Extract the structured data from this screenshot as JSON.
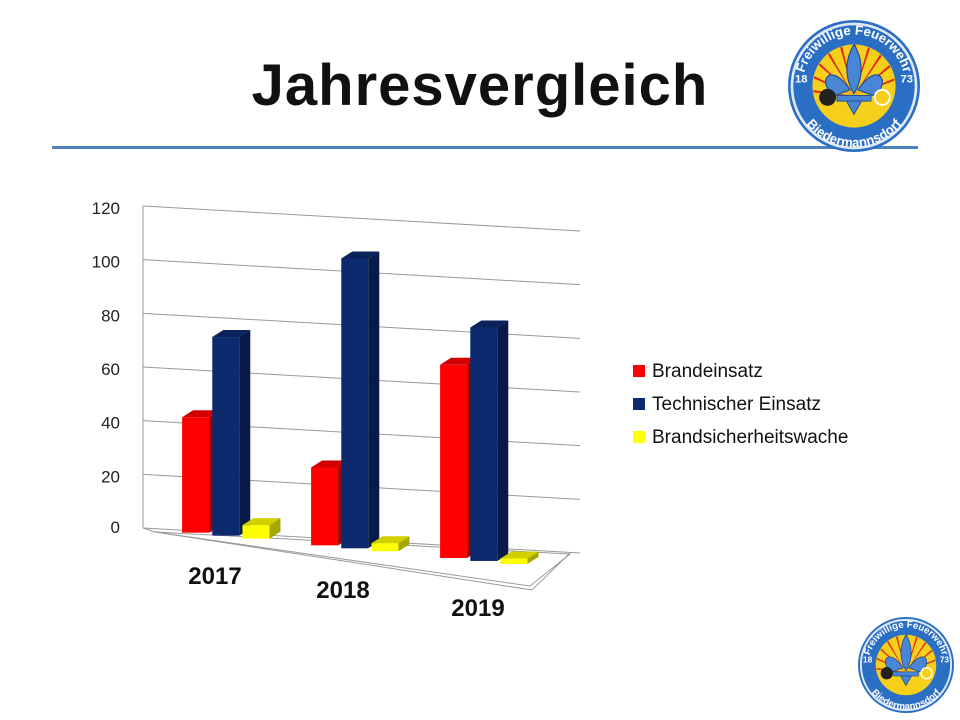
{
  "slide": {
    "title": "Jahresvergleich",
    "logo_text_top": "Freiwillige Feuerwehr",
    "logo_text_bottom": "Biedermannsdorf",
    "logo_year_left": "18",
    "logo_year_right": "73"
  },
  "chart_data": {
    "type": "bar",
    "title": "",
    "xlabel": "",
    "ylabel": "",
    "categories": [
      "2017",
      "2018",
      "2019"
    ],
    "series": [
      {
        "name": "Brandeinsatz",
        "values": [
          43,
          29,
          72
        ],
        "color": "#ff0000"
      },
      {
        "name": "Technischer Einsatz",
        "values": [
          74,
          108,
          87
        ],
        "color": "#0d2a6e"
      },
      {
        "name": "Brandsicherheitswache",
        "values": [
          5,
          3,
          2
        ],
        "color": "#ffff00"
      }
    ],
    "ylim": [
      0,
      120
    ],
    "yticks": [
      "0",
      "20",
      "40",
      "60",
      "80",
      "100",
      "120"
    ],
    "grid": true,
    "legend": "right",
    "style": "3d-clustered"
  }
}
